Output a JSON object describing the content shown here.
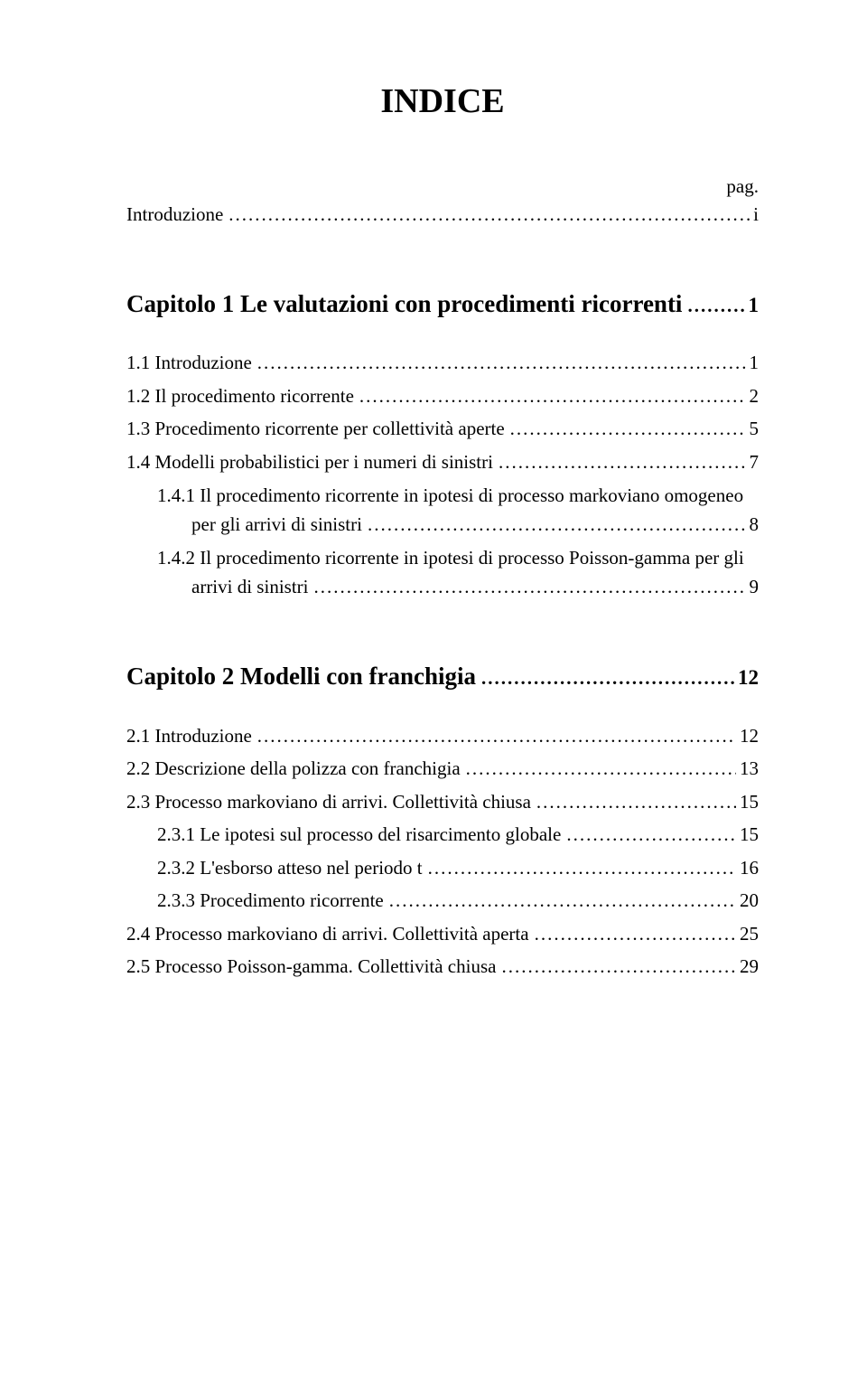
{
  "title": "INDICE",
  "pag_label": "pag.",
  "intro": {
    "label": "Introduzione",
    "page": "i"
  },
  "chapters": [
    {
      "heading_prefix": "Capitolo 1",
      "heading_title": "Le valutazioni con procedimenti ricorrenti",
      "heading_page": "1",
      "entries": [
        {
          "kind": "sec",
          "label": "1.1   Introduzione",
          "page": "1"
        },
        {
          "kind": "sec",
          "label": "1.2   Il procedimento ricorrente",
          "page": "2"
        },
        {
          "kind": "sec",
          "label": "1.3   Procedimento ricorrente per collettività aperte",
          "page": "5"
        },
        {
          "kind": "sec",
          "label": "1.4   Modelli probabilistici per i numeri di sinistri",
          "page": "7"
        },
        {
          "kind": "subsec-wrap",
          "line1": "1.4.1 Il procedimento ricorrente in ipotesi di processo markoviano omogeneo",
          "cont": "per gli arrivi di sinistri",
          "page": "8"
        },
        {
          "kind": "subsec-wrap",
          "line1": "1.4.2 Il procedimento ricorrente in ipotesi di processo Poisson-gamma per gli",
          "cont": "arrivi di sinistri",
          "page": "9"
        }
      ]
    },
    {
      "heading_prefix": "Capitolo 2",
      "heading_title": "Modelli con franchigia",
      "heading_page": "12",
      "entries": [
        {
          "kind": "sec",
          "label": "2.1   Introduzione",
          "page": "12"
        },
        {
          "kind": "sec",
          "label": "2.2   Descrizione della polizza con franchigia",
          "page": "13"
        },
        {
          "kind": "sec",
          "label": "2.3   Processo markoviano di arrivi. Collettività chiusa",
          "page": "15"
        },
        {
          "kind": "subsec",
          "label": "2.3.1 Le ipotesi sul processo del risarcimento globale",
          "page": "15"
        },
        {
          "kind": "subsec",
          "label": "2.3.2 L'esborso atteso nel periodo t",
          "page": "16"
        },
        {
          "kind": "subsec",
          "label": "2.3.3 Procedimento ricorrente",
          "page": "20"
        },
        {
          "kind": "sec",
          "label": "2.4   Processo markoviano di arrivi. Collettività aperta",
          "page": "25"
        },
        {
          "kind": "sec",
          "label": "2.5   Processo Poisson-gamma. Collettività chiusa",
          "page": "29"
        }
      ]
    }
  ]
}
